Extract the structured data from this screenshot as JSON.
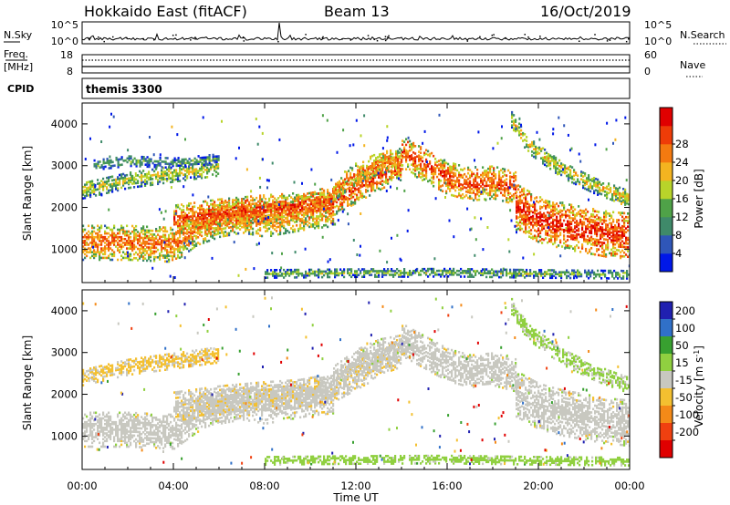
{
  "header": {
    "title": "Hokkaido East (fitACF)",
    "beam": "Beam 13",
    "date": "16/Oct/2019"
  },
  "noise_panel": {
    "left_label": "N.Sky",
    "left_ticks": [
      "10^5",
      "10^0"
    ],
    "right_ticks": [
      "10^5",
      "10^0"
    ],
    "right_label": "N.Search"
  },
  "freq_panel": {
    "left_label_line1": "Freq.",
    "left_label_line2": "[MHz]",
    "left_ticks": [
      "18",
      "8"
    ],
    "right_ticks": [
      "60",
      "0"
    ],
    "right_label": "Nave"
  },
  "cpid_panel": {
    "label": "CPID",
    "value": "themis 3300"
  },
  "x_axis": {
    "tick_labels": [
      "00:00",
      "04:00",
      "08:00",
      "12:00",
      "16:00",
      "20:00",
      "00:00"
    ],
    "label": "Time UT"
  },
  "power_panel": {
    "ylabel": "Slant Range [km]",
    "y_ticks": [
      "1000",
      "2000",
      "3000",
      "4000"
    ],
    "colorbar_label": "Power [dB]",
    "colorbar_ticks": [
      "4",
      "8",
      "12",
      "16",
      "20",
      "24",
      "28"
    ],
    "colorbar_colors": [
      "#0018e8",
      "#2f56b8",
      "#3f8a6a",
      "#4fa248",
      "#b8d42a",
      "#f4b420",
      "#f47a10",
      "#ee3c08",
      "#e00000"
    ]
  },
  "velocity_panel": {
    "ylabel": "Slant Range [km]",
    "y_ticks": [
      "1000",
      "2000",
      "3000",
      "4000"
    ],
    "colorbar_label_main": "Velocity [m s",
    "colorbar_label_exp": "-1",
    "colorbar_label_end": "]",
    "colorbar_ticks": [
      "200",
      "100",
      "50",
      "15",
      "-15",
      "-50",
      "-100",
      "-200"
    ],
    "colorbar_colors": [
      "#2020b0",
      "#3070c8",
      "#38a030",
      "#90d040",
      "#c8c8c0",
      "#f4c030",
      "#f48a18",
      "#f04010",
      "#e00000"
    ]
  },
  "chart_data": [
    {
      "type": "heatmap",
      "name": "Power",
      "x_range_hours": [
        0,
        24
      ],
      "y_range_km": [
        200,
        4500
      ],
      "x_tick_hours": [
        0,
        4,
        8,
        12,
        16,
        20,
        24
      ],
      "y_ticks_km": [
        1000,
        2000,
        3000,
        4000
      ],
      "color_range_db": [
        0,
        32
      ],
      "bands": [
        {
          "t": [
            0,
            2,
            4,
            5,
            6,
            7,
            8,
            9,
            10,
            11
          ],
          "r": [
            1150,
            1150,
            1100,
            1500,
            1700,
            1800,
            1700,
            1800,
            1900,
            1950
          ],
          "w": 420,
          "v": 25
        },
        {
          "t": [
            4,
            6,
            8,
            9.5,
            11,
            12,
            13.5,
            14
          ],
          "r": [
            1700,
            1850,
            1950,
            2000,
            2150,
            2450,
            2900,
            3000
          ],
          "w": 350,
          "v": 27
        },
        {
          "t": [
            11,
            12,
            13,
            14
          ],
          "r": [
            2400,
            2800,
            3050,
            3150
          ],
          "w": 250,
          "v": 24
        },
        {
          "t": [
            14,
            15,
            16,
            17,
            18,
            19
          ],
          "r": [
            3300,
            3000,
            2700,
            2550,
            2600,
            2450
          ],
          "w": 400,
          "v": 27
        },
        {
          "t": [
            19,
            20,
            21,
            22,
            23,
            24
          ],
          "r": [
            2000,
            1700,
            1550,
            1450,
            1350,
            1300
          ],
          "w": 550,
          "v": 29
        },
        {
          "t": [
            18.8,
            19.5,
            21,
            22.5,
            24
          ],
          "r": [
            4100,
            3500,
            2900,
            2500,
            2200
          ],
          "w": 200,
          "v": 20
        },
        {
          "t": [
            0,
            2,
            4,
            6
          ],
          "r": [
            2400,
            2650,
            2800,
            2950
          ],
          "w": 200,
          "v": 18
        },
        {
          "t": [
            0.5,
            2,
            4,
            6
          ],
          "r": [
            3000,
            3100,
            3050,
            3150
          ],
          "w": 120,
          "v": 13
        },
        {
          "t": [
            8,
            12,
            16,
            20,
            24
          ],
          "r": [
            400,
            420,
            430,
            400,
            380
          ],
          "w": 100,
          "v": 15
        }
      ]
    },
    {
      "type": "heatmap",
      "name": "Velocity",
      "x_range_hours": [
        0,
        24
      ],
      "y_range_km": [
        200,
        4500
      ],
      "color_range_ms": [
        -200,
        200
      ],
      "bands": [
        {
          "t": [
            0,
            2,
            4,
            5,
            6,
            7,
            8,
            9,
            10,
            11
          ],
          "r": [
            1150,
            1150,
            1100,
            1500,
            1700,
            1800,
            1700,
            1800,
            1900,
            1950
          ],
          "w": 420,
          "v": 0
        },
        {
          "t": [
            4,
            6,
            8,
            9.5,
            11,
            12,
            13.5,
            14
          ],
          "r": [
            1700,
            1850,
            1950,
            2000,
            2150,
            2450,
            2900,
            3000
          ],
          "w": 350,
          "v": -10
        },
        {
          "t": [
            11,
            12,
            13,
            14
          ],
          "r": [
            2400,
            2800,
            3050,
            3150
          ],
          "w": 250,
          "v": 0
        },
        {
          "t": [
            14,
            15,
            16,
            17,
            18,
            19
          ],
          "r": [
            3300,
            3000,
            2700,
            2550,
            2600,
            2450
          ],
          "w": 400,
          "v": 0
        },
        {
          "t": [
            19,
            20,
            21,
            22,
            23,
            24
          ],
          "r": [
            2000,
            1700,
            1550,
            1450,
            1350,
            1300
          ],
          "w": 550,
          "v": 0
        },
        {
          "t": [
            18.8,
            19.5,
            21,
            22.5,
            24
          ],
          "r": [
            4100,
            3500,
            2900,
            2500,
            2200
          ],
          "w": 200,
          "v": 30
        },
        {
          "t": [
            0,
            2,
            4,
            6
          ],
          "r": [
            2400,
            2650,
            2800,
            2950
          ],
          "w": 200,
          "v": -30
        },
        {
          "t": [
            8,
            12,
            16,
            20,
            24
          ],
          "r": [
            400,
            420,
            430,
            400,
            380
          ],
          "w": 100,
          "v": 40
        }
      ]
    }
  ]
}
